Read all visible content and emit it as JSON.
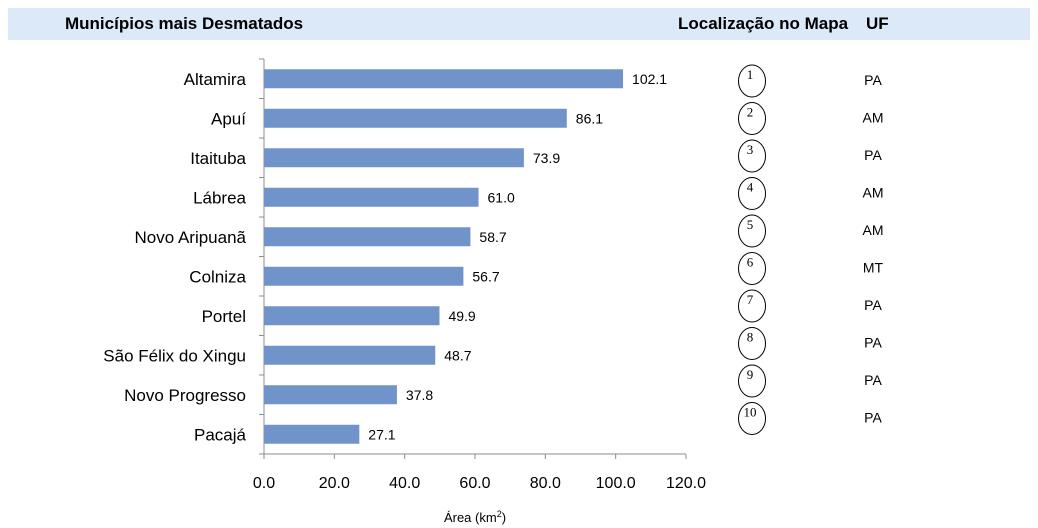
{
  "header": {
    "title": "Municípios mais Desmatados",
    "location_label": "Localização no Mapa",
    "uf_label": "UF"
  },
  "chart_data": {
    "type": "bar",
    "orientation": "horizontal",
    "categories": [
      "Altamira",
      "Apuí",
      "Itaituba",
      "Lábrea",
      "Novo Aripuanã",
      "Colniza",
      "Portel",
      "São Félix do Xingu",
      "Novo Progresso",
      "Pacajá"
    ],
    "values": [
      102.1,
      86.1,
      73.9,
      61.0,
      58.7,
      56.7,
      49.9,
      48.7,
      37.8,
      27.1
    ],
    "value_labels": [
      "102.1",
      "86.1",
      "73.9",
      "61.0",
      "58.7",
      "56.7",
      "49.9",
      "48.7",
      "37.8",
      "27.1"
    ],
    "xlabel": "Área (km",
    "xlabel_sup": "2",
    "xlabel_end": ")",
    "xlim": [
      0,
      120
    ],
    "xticks": [
      0,
      20,
      40,
      60,
      80,
      100,
      120
    ],
    "xtick_labels": [
      "0.0",
      "20.0",
      "40.0",
      "60.0",
      "80.0",
      "100.0",
      "120.0"
    ],
    "bar_color": "#7094c9"
  },
  "map_locations": [
    {
      "number": "1",
      "uf": "PA"
    },
    {
      "number": "2",
      "uf": "AM"
    },
    {
      "number": "3",
      "uf": "PA"
    },
    {
      "number": "4",
      "uf": "AM"
    },
    {
      "number": "5",
      "uf": "AM"
    },
    {
      "number": "6",
      "uf": "MT"
    },
    {
      "number": "7",
      "uf": "PA"
    },
    {
      "number": "8",
      "uf": "PA"
    },
    {
      "number": "9",
      "uf": "PA"
    },
    {
      "number": "10",
      "uf": "PA"
    }
  ]
}
